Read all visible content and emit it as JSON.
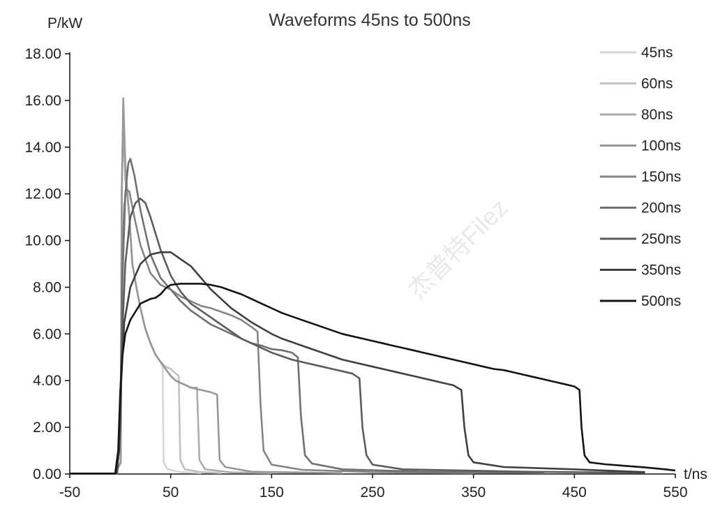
{
  "chart_data": {
    "type": "line",
    "title": "Waveforms 45ns to 500ns",
    "ylabel": "P/kW",
    "xlabel": "t/ns",
    "xlim": [
      -50,
      550
    ],
    "ylim": [
      0,
      18
    ],
    "x_ticks": [
      "-50",
      "50",
      "150",
      "250",
      "350",
      "450",
      "550"
    ],
    "y_ticks": [
      "0.00",
      "2.00",
      "4.00",
      "6.00",
      "8.00",
      "10.00",
      "12.00",
      "14.00",
      "16.00",
      "18.00"
    ],
    "grid": false,
    "legend_position": "right",
    "series": [
      {
        "name": "45ns",
        "color": "#d6d6d6",
        "points": [
          [
            -50,
            0.02
          ],
          [
            -5,
            0.02
          ],
          [
            0.5,
            0.5
          ],
          [
            1.5,
            12
          ],
          [
            3,
            15.6
          ],
          [
            4.5,
            13.5
          ],
          [
            7,
            12.2
          ],
          [
            9,
            11
          ],
          [
            12,
            9
          ],
          [
            16,
            8
          ],
          [
            20,
            7.1
          ],
          [
            25,
            6.2
          ],
          [
            30,
            5.6
          ],
          [
            35,
            5.1
          ],
          [
            40,
            4.8
          ],
          [
            42,
            4.6
          ],
          [
            43,
            0.5
          ],
          [
            47,
            0.2
          ],
          [
            60,
            0.08
          ],
          [
            80,
            0.04
          ]
        ]
      },
      {
        "name": "60ns",
        "color": "#c2c2c2",
        "points": [
          [
            -50,
            0.02
          ],
          [
            -5,
            0.02
          ],
          [
            0.5,
            0.5
          ],
          [
            1.5,
            12
          ],
          [
            3,
            15.3
          ],
          [
            5,
            12.8
          ],
          [
            7,
            12.1
          ],
          [
            9,
            11
          ],
          [
            12,
            9
          ],
          [
            16,
            8
          ],
          [
            20,
            7.1
          ],
          [
            25,
            6.2
          ],
          [
            30,
            5.6
          ],
          [
            35,
            5.1
          ],
          [
            40,
            4.8
          ],
          [
            45,
            4.6
          ],
          [
            50,
            4.5
          ],
          [
            55,
            4.3
          ],
          [
            58,
            4.2
          ],
          [
            59.5,
            0.6
          ],
          [
            64,
            0.2
          ],
          [
            80,
            0.08
          ],
          [
            100,
            0.04
          ]
        ]
      },
      {
        "name": "80ns",
        "color": "#adadad",
        "points": [
          [
            -50,
            0.02
          ],
          [
            -5,
            0.02
          ],
          [
            0.5,
            0.5
          ],
          [
            1.5,
            12
          ],
          [
            3,
            15.1
          ],
          [
            5,
            12.6
          ],
          [
            7,
            12
          ],
          [
            9,
            11
          ],
          [
            12,
            9
          ],
          [
            16,
            8
          ],
          [
            20,
            7.1
          ],
          [
            25,
            6.2
          ],
          [
            30,
            5.6
          ],
          [
            35,
            5.1
          ],
          [
            40,
            4.8
          ],
          [
            45,
            4.5
          ],
          [
            50,
            4.2
          ],
          [
            55,
            4
          ],
          [
            60,
            3.9
          ],
          [
            65,
            3.8
          ],
          [
            70,
            3.7
          ],
          [
            76,
            3.7
          ],
          [
            78.5,
            0.6
          ],
          [
            84,
            0.2
          ],
          [
            110,
            0.07
          ],
          [
            150,
            0.04
          ]
        ]
      },
      {
        "name": "100ns",
        "color": "#989898",
        "points": [
          [
            -50,
            0.02
          ],
          [
            -5,
            0.02
          ],
          [
            0.5,
            0.5
          ],
          [
            1.5,
            12
          ],
          [
            3,
            16.1
          ],
          [
            5,
            13.3
          ],
          [
            7,
            12
          ],
          [
            9,
            11
          ],
          [
            12,
            9
          ],
          [
            16,
            8
          ],
          [
            20,
            7.1
          ],
          [
            25,
            6.2
          ],
          [
            30,
            5.6
          ],
          [
            35,
            5.1
          ],
          [
            40,
            4.8
          ],
          [
            45,
            4.5
          ],
          [
            50,
            4.2
          ],
          [
            55,
            4
          ],
          [
            60,
            3.9
          ],
          [
            65,
            3.8
          ],
          [
            70,
            3.7
          ],
          [
            80,
            3.6
          ],
          [
            90,
            3.5
          ],
          [
            96,
            3.4
          ],
          [
            98.5,
            0.6
          ],
          [
            104,
            0.3
          ],
          [
            130,
            0.1
          ],
          [
            200,
            0.05
          ],
          [
            220,
            0.04
          ]
        ]
      },
      {
        "name": "150ns",
        "color": "#858585",
        "points": [
          [
            -50,
            0.02
          ],
          [
            -3,
            0.02
          ],
          [
            0,
            2
          ],
          [
            2,
            9
          ],
          [
            4,
            11.5
          ],
          [
            6,
            12.2
          ],
          [
            9,
            12.1
          ],
          [
            14,
            11
          ],
          [
            20,
            9.8
          ],
          [
            30,
            8.6
          ],
          [
            40,
            8.1
          ],
          [
            50,
            7.9
          ],
          [
            60,
            7.6
          ],
          [
            70,
            7.4
          ],
          [
            80,
            7.2
          ],
          [
            90,
            7.1
          ],
          [
            100,
            6.95
          ],
          [
            110,
            6.8
          ],
          [
            120,
            6.6
          ],
          [
            130,
            6.3
          ],
          [
            136,
            6.1
          ],
          [
            139,
            3
          ],
          [
            142,
            1
          ],
          [
            150,
            0.4
          ],
          [
            180,
            0.18
          ],
          [
            250,
            0.08
          ],
          [
            350,
            0.04
          ]
        ]
      },
      {
        "name": "200ns",
        "color": "#707070",
        "points": [
          [
            -50,
            0.02
          ],
          [
            -3,
            0.02
          ],
          [
            0,
            2
          ],
          [
            2,
            8
          ],
          [
            5,
            12
          ],
          [
            8,
            13.3
          ],
          [
            10,
            13.5
          ],
          [
            14,
            12.8
          ],
          [
            20,
            11.3
          ],
          [
            30,
            9.4
          ],
          [
            40,
            8.4
          ],
          [
            50,
            7.9
          ],
          [
            60,
            7.4
          ],
          [
            70,
            7
          ],
          [
            80,
            6.7
          ],
          [
            90,
            6.4
          ],
          [
            100,
            6.2
          ],
          [
            110,
            6
          ],
          [
            120,
            5.8
          ],
          [
            130,
            5.6
          ],
          [
            140,
            5.5
          ],
          [
            150,
            5.35
          ],
          [
            160,
            5.3
          ],
          [
            170,
            5.2
          ],
          [
            176,
            5
          ],
          [
            179,
            2.5
          ],
          [
            183,
            0.8
          ],
          [
            190,
            0.45
          ],
          [
            220,
            0.2
          ],
          [
            300,
            0.1
          ],
          [
            400,
            0.05
          ],
          [
            420,
            0.04
          ]
        ]
      },
      {
        "name": "250ns",
        "color": "#5c5c5c",
        "points": [
          [
            -50,
            0.02
          ],
          [
            -3,
            0.02
          ],
          [
            0,
            2
          ],
          [
            2,
            6
          ],
          [
            5,
            9
          ],
          [
            10,
            11
          ],
          [
            15,
            11.6
          ],
          [
            20,
            11.8
          ],
          [
            25,
            11.6
          ],
          [
            30,
            11
          ],
          [
            40,
            9.6
          ],
          [
            50,
            8.5
          ],
          [
            60,
            7.8
          ],
          [
            70,
            7.3
          ],
          [
            80,
            7
          ],
          [
            90,
            6.7
          ],
          [
            100,
            6.4
          ],
          [
            110,
            6.1
          ],
          [
            120,
            5.8
          ],
          [
            130,
            5.6
          ],
          [
            140,
            5.4
          ],
          [
            150,
            5.2
          ],
          [
            160,
            5.05
          ],
          [
            170,
            4.9
          ],
          [
            180,
            4.8
          ],
          [
            190,
            4.7
          ],
          [
            200,
            4.6
          ],
          [
            210,
            4.5
          ],
          [
            220,
            4.4
          ],
          [
            230,
            4.3
          ],
          [
            237,
            4.1
          ],
          [
            240,
            2
          ],
          [
            244,
            0.8
          ],
          [
            250,
            0.4
          ],
          [
            280,
            0.2
          ],
          [
            400,
            0.1
          ],
          [
            520,
            0.05
          ]
        ]
      },
      {
        "name": "350ns",
        "color": "#404040",
        "points": [
          [
            -50,
            0.02
          ],
          [
            -4,
            0.02
          ],
          [
            -1,
            1
          ],
          [
            1,
            4
          ],
          [
            4,
            6.5
          ],
          [
            10,
            8
          ],
          [
            20,
            9
          ],
          [
            30,
            9.4
          ],
          [
            40,
            9.5
          ],
          [
            50,
            9.5
          ],
          [
            60,
            9.2
          ],
          [
            70,
            8.9
          ],
          [
            80,
            8.4
          ],
          [
            90,
            7.9
          ],
          [
            100,
            7.5
          ],
          [
            110,
            7.1
          ],
          [
            120,
            6.8
          ],
          [
            130,
            6.5
          ],
          [
            140,
            6.25
          ],
          [
            150,
            6
          ],
          [
            160,
            5.8
          ],
          [
            170,
            5.65
          ],
          [
            180,
            5.5
          ],
          [
            190,
            5.35
          ],
          [
            200,
            5.2
          ],
          [
            210,
            5.05
          ],
          [
            220,
            4.9
          ],
          [
            230,
            4.8
          ],
          [
            240,
            4.7
          ],
          [
            250,
            4.6
          ],
          [
            260,
            4.5
          ],
          [
            270,
            4.4
          ],
          [
            280,
            4.3
          ],
          [
            290,
            4.2
          ],
          [
            300,
            4.1
          ],
          [
            310,
            4
          ],
          [
            320,
            3.9
          ],
          [
            330,
            3.8
          ],
          [
            338,
            3.6
          ],
          [
            341,
            2
          ],
          [
            345,
            0.8
          ],
          [
            350,
            0.5
          ],
          [
            380,
            0.3
          ],
          [
            450,
            0.2
          ],
          [
            520,
            0.08
          ]
        ]
      },
      {
        "name": "500ns",
        "color": "#141414",
        "points": [
          [
            -50,
            0.02
          ],
          [
            -5,
            0.02
          ],
          [
            -2,
            1
          ],
          [
            0,
            3.5
          ],
          [
            2,
            5
          ],
          [
            5,
            6
          ],
          [
            10,
            6.6
          ],
          [
            20,
            7.3
          ],
          [
            30,
            7.5
          ],
          [
            35,
            7.55
          ],
          [
            40,
            7.7
          ],
          [
            45,
            7.95
          ],
          [
            50,
            8.1
          ],
          [
            60,
            8.15
          ],
          [
            70,
            8.15
          ],
          [
            80,
            8.15
          ],
          [
            90,
            8.1
          ],
          [
            100,
            8
          ],
          [
            110,
            7.85
          ],
          [
            120,
            7.7
          ],
          [
            130,
            7.5
          ],
          [
            140,
            7.3
          ],
          [
            150,
            7.1
          ],
          [
            160,
            6.9
          ],
          [
            170,
            6.75
          ],
          [
            180,
            6.6
          ],
          [
            190,
            6.45
          ],
          [
            200,
            6.3
          ],
          [
            210,
            6.15
          ],
          [
            220,
            6
          ],
          [
            230,
            5.9
          ],
          [
            240,
            5.8
          ],
          [
            250,
            5.7
          ],
          [
            260,
            5.6
          ],
          [
            270,
            5.5
          ],
          [
            280,
            5.4
          ],
          [
            290,
            5.3
          ],
          [
            300,
            5.2
          ],
          [
            310,
            5.1
          ],
          [
            320,
            5
          ],
          [
            330,
            4.9
          ],
          [
            340,
            4.8
          ],
          [
            350,
            4.7
          ],
          [
            360,
            4.6
          ],
          [
            370,
            4.5
          ],
          [
            380,
            4.45
          ],
          [
            390,
            4.35
          ],
          [
            400,
            4.25
          ],
          [
            410,
            4.15
          ],
          [
            420,
            4.05
          ],
          [
            430,
            3.95
          ],
          [
            440,
            3.85
          ],
          [
            450,
            3.75
          ],
          [
            455,
            3.6
          ],
          [
            457,
            2
          ],
          [
            460,
            0.8
          ],
          [
            465,
            0.5
          ],
          [
            480,
            0.42
          ],
          [
            500,
            0.35
          ],
          [
            520,
            0.28
          ],
          [
            540,
            0.2
          ],
          [
            550,
            0.15
          ]
        ]
      }
    ]
  }
}
